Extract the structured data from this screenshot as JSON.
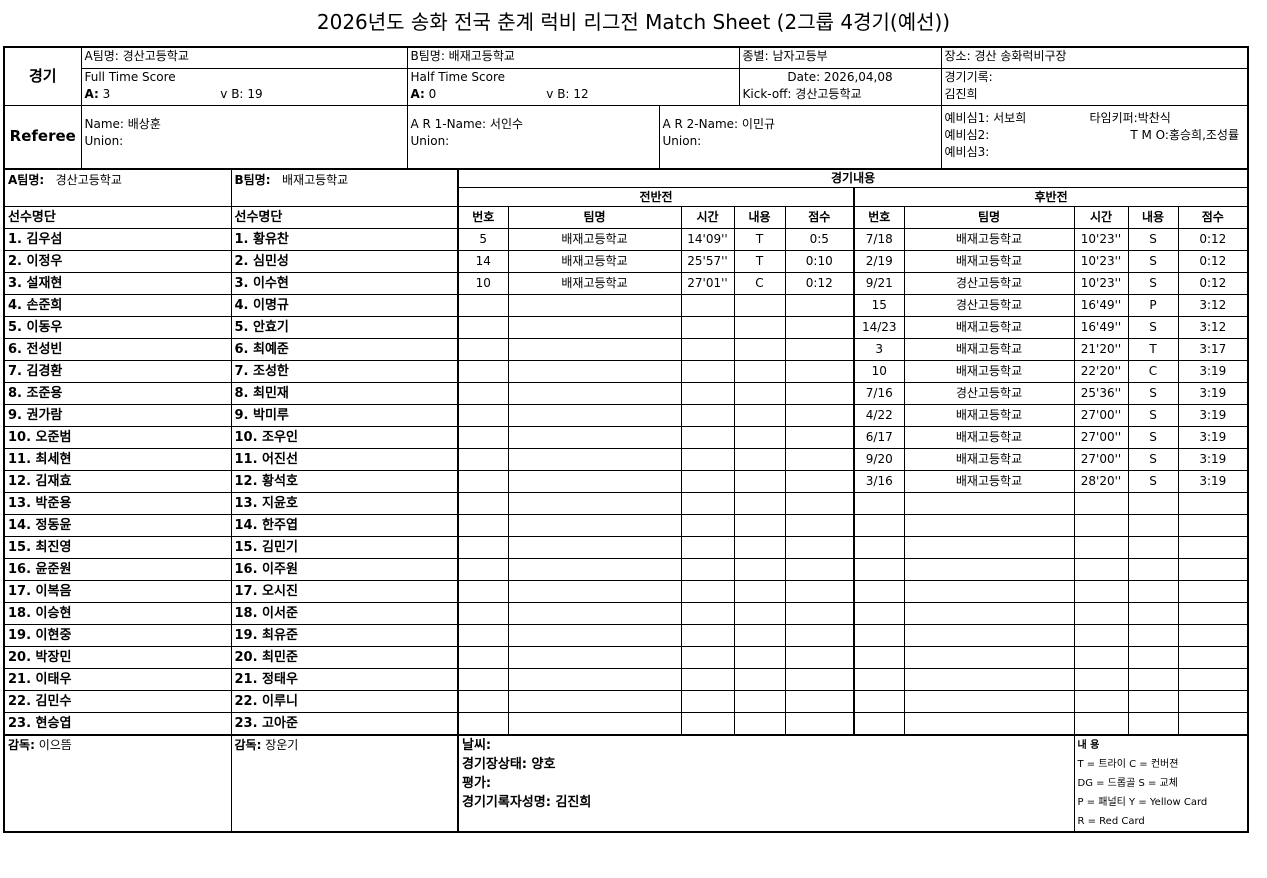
{
  "title": "2026년도 송화 전국 춘계 럭비 리그전  Match Sheet (2그룹 4경기(예선))",
  "match": {
    "label": "경기",
    "team_a": "A팀명: 경산고등학교",
    "team_b": "B팀명: 배재고등학교",
    "division": "종별: 남자고등부",
    "venue": "장소: 경산 송화럭비구장",
    "full_time_label": "Full Time Score",
    "full_a_label": "A:",
    "full_a": "3",
    "full_b_label": "v  B:",
    "full_b": "19",
    "half_time_label": "Half Time Score",
    "half_a_label": "A:",
    "half_a": "0",
    "half_b_label": "v  B:",
    "half_b": "12",
    "date": "Date: 2026,04,08",
    "kickoff": "Kick-off: 경산고등학교",
    "recorder_label": "경기기록:",
    "recorder": "김진희"
  },
  "referee": {
    "label": "Referee",
    "name": "Name:  배상훈",
    "union": "Union:",
    "ar1": "A R 1-Name:  서인수",
    "ar1_union": "Union:",
    "ar2": "A R 2-Name:  이민규",
    "ar2_union": "Union:",
    "reserve1": "예비심1: 서보희",
    "reserve2": "예비심2:",
    "reserve3": "예비심3:",
    "timekeeper": "타임키퍼:박찬식",
    "tmo": "T M O:홍승희,조성률"
  },
  "teams": {
    "a_label": "A팀명:",
    "a_name": "경산고등학교",
    "b_label": "B팀명:",
    "b_name": "배재고등학교",
    "roster_header": "선수명단",
    "a_players": [
      "1. 김우섬",
      "2. 이정우",
      "3. 설재현",
      "4. 손준희",
      "5. 이동우",
      "6. 전성빈",
      "7. 김경환",
      "8. 조준용",
      "9. 권가람",
      "10. 오준범",
      "11. 최세현",
      "12. 김재효",
      "13. 박준용",
      "14. 정동윤",
      "15. 최진영",
      "16. 윤준원",
      "17. 이복음",
      "18. 이승현",
      "19. 이현중",
      "20. 박장민",
      "21. 이태우",
      "22. 김민수",
      "23. 현승엽"
    ],
    "b_players": [
      "1. 황유찬",
      "2. 심민성",
      "3. 이수현",
      "4. 이명규",
      "5. 안효기",
      "6. 최예준",
      "7. 조성한",
      "8. 최민재",
      "9. 박미루",
      "10. 조우인",
      "11. 어진선",
      "12. 황석호",
      "13. 지윤호",
      "14. 한주엽",
      "15. 김민기",
      "16. 이주원",
      "17. 오시진",
      "18. 이서준",
      "19. 최유준",
      "20. 최민준",
      "21. 정태우",
      "22. 이루니",
      "23. 고아준"
    ]
  },
  "events": {
    "title": "경기내용",
    "first_half_label": "전반전",
    "second_half_label": "후반전",
    "columns": [
      "번호",
      "팀명",
      "시간",
      "내용",
      "점수"
    ],
    "first_half": [
      [
        "5",
        "배재고등학교",
        "14'09''",
        "T",
        "0:5"
      ],
      [
        "14",
        "배재고등학교",
        "25'57''",
        "T",
        "0:10"
      ],
      [
        "10",
        "배재고등학교",
        "27'01''",
        "C",
        "0:12"
      ]
    ],
    "second_half": [
      [
        "7/18",
        "배재고등학교",
        "10'23''",
        "S",
        "0:12"
      ],
      [
        "2/19",
        "배재고등학교",
        "10'23''",
        "S",
        "0:12"
      ],
      [
        "9/21",
        "경산고등학교",
        "10'23''",
        "S",
        "0:12"
      ],
      [
        "15",
        "경산고등학교",
        "16'49''",
        "P",
        "3:12"
      ],
      [
        "14/23",
        "배재고등학교",
        "16'49''",
        "S",
        "3:12"
      ],
      [
        "3",
        "배재고등학교",
        "21'20''",
        "T",
        "3:17"
      ],
      [
        "10",
        "배재고등학교",
        "22'20''",
        "C",
        "3:19"
      ],
      [
        "7/16",
        "경산고등학교",
        "25'36''",
        "S",
        "3:19"
      ],
      [
        "4/22",
        "배재고등학교",
        "27'00''",
        "S",
        "3:19"
      ],
      [
        "6/17",
        "배재고등학교",
        "27'00''",
        "S",
        "3:19"
      ],
      [
        "9/20",
        "배재고등학교",
        "27'00''",
        "S",
        "3:19"
      ],
      [
        "3/16",
        "배재고등학교",
        "28'20''",
        "S",
        "3:19"
      ]
    ]
  },
  "footer": {
    "coach_a_label": "감독:",
    "coach_a": "이으뜸",
    "coach_b_label": "감독:",
    "coach_b": "장운기",
    "weather": "날씨:",
    "ground": "경기장상태:  양호",
    "evaluation": "평가:",
    "recorder": "경기기록자성명:     김진희",
    "legend_title": "내  용",
    "legend": [
      "T = 트라이      C = 컨버젼",
      "DG = 드롭골    S = 교체",
      "P = 패널티  Y = Yellow Card",
      "R = Red Card"
    ]
  }
}
